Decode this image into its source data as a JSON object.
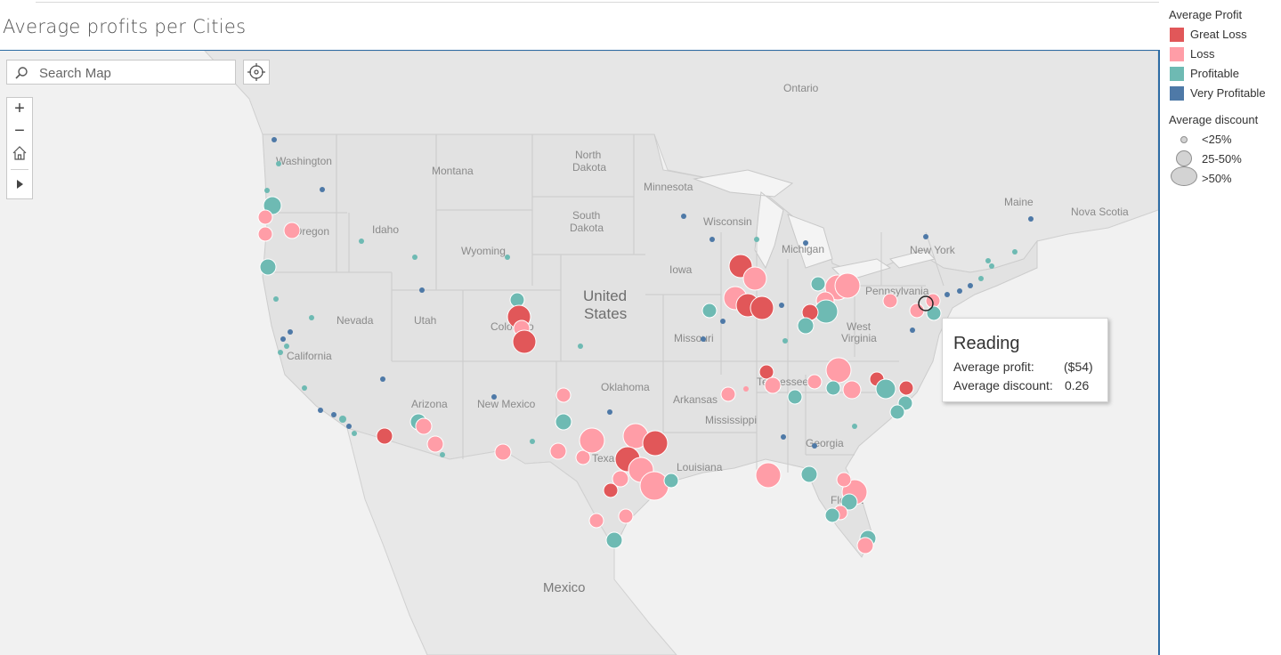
{
  "title": "Average profits per Cities",
  "search": {
    "placeholder": "Search Map"
  },
  "toolbar": {
    "zoom_in": "+",
    "zoom_out": "−"
  },
  "map_labels": {
    "ontario": "Ontario",
    "north_dakota_1": "North",
    "north_dakota_2": "Dakota",
    "minnesota": "Minnesota",
    "washington": "Washington",
    "montana": "Montana",
    "south_dakota_1": "South",
    "south_dakota_2": "Dakota",
    "wisconsin": "Wisconsin",
    "michigan": "Michigan",
    "maine": "Maine",
    "nova_scotia": "Nova Scotia",
    "oregon": "Oregon",
    "idaho": "Idaho",
    "wyoming": "Wyoming",
    "iowa": "Iowa",
    "new_york": "New York",
    "pennsylvania": "Pennsylvania",
    "united_1": "United",
    "united_2": "States",
    "nevada": "Nevada",
    "utah": "Utah",
    "colorado": "Colorado",
    "missouri": "Missouri",
    "west_virginia_1": "West",
    "west_virginia_2": "Virginia",
    "california": "California",
    "tennessee": "Tennessee",
    "oklahoma": "Oklahoma",
    "arkansas": "Arkansas",
    "arizona": "Arizona",
    "new_mexico": "New Mexico",
    "mississippi": "Mississippi",
    "georgia": "Georgia",
    "texas": "Texas",
    "louisiana": "Louisiana",
    "florida": "Florida",
    "mexico": "Mexico"
  },
  "tooltip": {
    "city": "Reading",
    "profit_label": "Average profit:",
    "profit_value": "($54)",
    "discount_label": "Average discount:",
    "discount_value": "0.26"
  },
  "legend": {
    "profit_title": "Average Profit",
    "profit_items": [
      {
        "label": "Great Loss",
        "color": "#e15759"
      },
      {
        "label": "Loss",
        "color": "#ff9da7"
      },
      {
        "label": "Profitable",
        "color": "#6ebab3"
      },
      {
        "label": "Very Profitable",
        "color": "#4e79a7"
      }
    ],
    "discount_title": "Average discount",
    "discount_items": [
      {
        "label": "<25%"
      },
      {
        "label": "25-50%"
      },
      {
        "label": ">50%"
      }
    ]
  }
}
